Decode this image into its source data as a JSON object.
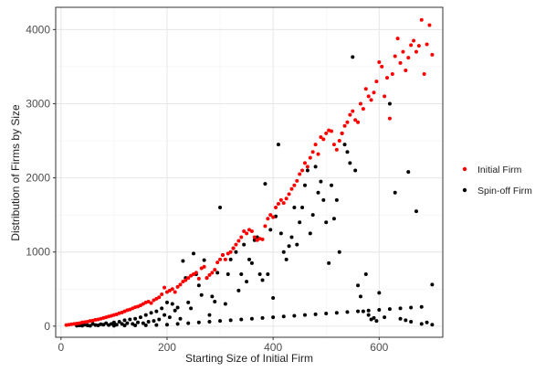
{
  "chart_data": {
    "type": "scatter",
    "title": "",
    "xlabel": "Starting Size of Initial Firm",
    "ylabel": "Distribution of Firms by Size",
    "xlim": [
      -10,
      720
    ],
    "ylim": [
      -150,
      4300
    ],
    "xticks": [
      0,
      200,
      400,
      600
    ],
    "yticks": [
      0,
      1000,
      2000,
      3000,
      4000
    ],
    "grid": true,
    "legend_position": "right",
    "series": [
      {
        "name": "Initial Firm",
        "color": "#ff0000",
        "points": [
          [
            10,
            15
          ],
          [
            15,
            20
          ],
          [
            20,
            25
          ],
          [
            25,
            30
          ],
          [
            30,
            35
          ],
          [
            35,
            40
          ],
          [
            40,
            50
          ],
          [
            45,
            55
          ],
          [
            50,
            60
          ],
          [
            55,
            70
          ],
          [
            60,
            75
          ],
          [
            65,
            85
          ],
          [
            70,
            90
          ],
          [
            75,
            100
          ],
          [
            80,
            110
          ],
          [
            85,
            120
          ],
          [
            90,
            130
          ],
          [
            95,
            140
          ],
          [
            100,
            150
          ],
          [
            105,
            160
          ],
          [
            110,
            175
          ],
          [
            115,
            185
          ],
          [
            120,
            200
          ],
          [
            125,
            215
          ],
          [
            130,
            225
          ],
          [
            135,
            240
          ],
          [
            140,
            255
          ],
          [
            145,
            265
          ],
          [
            150,
            280
          ],
          [
            155,
            300
          ],
          [
            160,
            320
          ],
          [
            165,
            330
          ],
          [
            170,
            310
          ],
          [
            175,
            350
          ],
          [
            180,
            370
          ],
          [
            185,
            390
          ],
          [
            190,
            430
          ],
          [
            195,
            520
          ],
          [
            200,
            460
          ],
          [
            205,
            480
          ],
          [
            210,
            500
          ],
          [
            215,
            460
          ],
          [
            220,
            530
          ],
          [
            225,
            560
          ],
          [
            230,
            600
          ],
          [
            235,
            620
          ],
          [
            240,
            650
          ],
          [
            245,
            680
          ],
          [
            250,
            700
          ],
          [
            255,
            720
          ],
          [
            260,
            640
          ],
          [
            265,
            780
          ],
          [
            270,
            800
          ],
          [
            275,
            650
          ],
          [
            280,
            690
          ],
          [
            285,
            720
          ],
          [
            290,
            760
          ],
          [
            295,
            860
          ],
          [
            300,
            900
          ],
          [
            305,
            960
          ],
          [
            310,
            900
          ],
          [
            315,
            980
          ],
          [
            320,
            1000
          ],
          [
            325,
            1050
          ],
          [
            330,
            1100
          ],
          [
            335,
            1150
          ],
          [
            340,
            1200
          ],
          [
            345,
            1280
          ],
          [
            350,
            1250
          ],
          [
            355,
            1300
          ],
          [
            360,
            1280
          ],
          [
            365,
            1200
          ],
          [
            370,
            1160
          ],
          [
            375,
            1180
          ],
          [
            380,
            1170
          ],
          [
            385,
            1350
          ],
          [
            390,
            1450
          ],
          [
            395,
            1500
          ],
          [
            400,
            1470
          ],
          [
            405,
            1600
          ],
          [
            410,
            1650
          ],
          [
            415,
            1700
          ],
          [
            420,
            1660
          ],
          [
            425,
            1720
          ],
          [
            430,
            1780
          ],
          [
            435,
            1850
          ],
          [
            440,
            1900
          ],
          [
            445,
            1960
          ],
          [
            450,
            2050
          ],
          [
            455,
            2100
          ],
          [
            460,
            2200
          ],
          [
            465,
            2150
          ],
          [
            470,
            2270
          ],
          [
            475,
            2350
          ],
          [
            480,
            2450
          ],
          [
            485,
            2320
          ],
          [
            490,
            2550
          ],
          [
            495,
            2520
          ],
          [
            500,
            2600
          ],
          [
            505,
            2640
          ],
          [
            510,
            2630
          ],
          [
            515,
            2450
          ],
          [
            520,
            2380
          ],
          [
            525,
            2500
          ],
          [
            530,
            2600
          ],
          [
            535,
            2700
          ],
          [
            540,
            2750
          ],
          [
            545,
            2850
          ],
          [
            550,
            2900
          ],
          [
            555,
            2780
          ],
          [
            560,
            2750
          ],
          [
            565,
            3000
          ],
          [
            570,
            2930
          ],
          [
            575,
            3200
          ],
          [
            580,
            3100
          ],
          [
            585,
            3050
          ],
          [
            590,
            3150
          ],
          [
            595,
            3300
          ],
          [
            600,
            3560
          ],
          [
            605,
            3500
          ],
          [
            610,
            3100
          ],
          [
            615,
            3350
          ],
          [
            620,
            2800
          ],
          [
            625,
            3400
          ],
          [
            630,
            3640
          ],
          [
            635,
            3880
          ],
          [
            640,
            3550
          ],
          [
            645,
            3700
          ],
          [
            650,
            3450
          ],
          [
            655,
            3620
          ],
          [
            660,
            3790
          ],
          [
            665,
            3850
          ],
          [
            670,
            3700
          ],
          [
            675,
            3780
          ],
          [
            680,
            4130
          ],
          [
            685,
            3400
          ],
          [
            690,
            3800
          ],
          [
            695,
            4060
          ],
          [
            700,
            3660
          ]
        ]
      },
      {
        "name": "Spin-off Firm",
        "color": "#000000",
        "points": [
          [
            30,
            5
          ],
          [
            35,
            10
          ],
          [
            40,
            5
          ],
          [
            45,
            20
          ],
          [
            50,
            10
          ],
          [
            55,
            5
          ],
          [
            60,
            30
          ],
          [
            65,
            15
          ],
          [
            70,
            10
          ],
          [
            75,
            25
          ],
          [
            80,
            20
          ],
          [
            85,
            40
          ],
          [
            90,
            15
          ],
          [
            95,
            30
          ],
          [
            100,
            50
          ],
          [
            105,
            20
          ],
          [
            110,
            60
          ],
          [
            115,
            30
          ],
          [
            120,
            80
          ],
          [
            125,
            40
          ],
          [
            130,
            90
          ],
          [
            135,
            30
          ],
          [
            140,
            100
          ],
          [
            145,
            50
          ],
          [
            150,
            120
          ],
          [
            155,
            40
          ],
          [
            160,
            150
          ],
          [
            165,
            60
          ],
          [
            170,
            180
          ],
          [
            175,
            70
          ],
          [
            180,
            200
          ],
          [
            185,
            90
          ],
          [
            190,
            240
          ],
          [
            195,
            150
          ],
          [
            200,
            320
          ],
          [
            205,
            120
          ],
          [
            210,
            300
          ],
          [
            215,
            210
          ],
          [
            220,
            250
          ],
          [
            225,
            100
          ],
          [
            230,
            880
          ],
          [
            235,
            650
          ],
          [
            240,
            320
          ],
          [
            245,
            240
          ],
          [
            250,
            980
          ],
          [
            255,
            700
          ],
          [
            260,
            550
          ],
          [
            265,
            420
          ],
          [
            270,
            890
          ],
          [
            275,
            650
          ],
          [
            280,
            150
          ],
          [
            285,
            400
          ],
          [
            290,
            330
          ],
          [
            295,
            720
          ],
          [
            300,
            1600
          ],
          [
            305,
            960
          ],
          [
            310,
            300
          ],
          [
            315,
            700
          ],
          [
            320,
            900
          ],
          [
            325,
            1050
          ],
          [
            330,
            1000
          ],
          [
            335,
            480
          ],
          [
            340,
            700
          ],
          [
            345,
            1100
          ],
          [
            350,
            600
          ],
          [
            355,
            900
          ],
          [
            360,
            850
          ],
          [
            365,
            1160
          ],
          [
            370,
            1200
          ],
          [
            375,
            700
          ],
          [
            380,
            620
          ],
          [
            385,
            1920
          ],
          [
            390,
            700
          ],
          [
            395,
            1300
          ],
          [
            400,
            380
          ],
          [
            405,
            1480
          ],
          [
            410,
            2450
          ],
          [
            415,
            1250
          ],
          [
            420,
            1000
          ],
          [
            425,
            900
          ],
          [
            430,
            1080
          ],
          [
            435,
            1200
          ],
          [
            440,
            1600
          ],
          [
            445,
            1100
          ],
          [
            450,
            1400
          ],
          [
            455,
            1600
          ],
          [
            460,
            1900
          ],
          [
            465,
            2100
          ],
          [
            470,
            1250
          ],
          [
            475,
            1500
          ],
          [
            480,
            2150
          ],
          [
            485,
            1800
          ],
          [
            490,
            1950
          ],
          [
            495,
            1700
          ],
          [
            500,
            1400
          ],
          [
            505,
            850
          ],
          [
            510,
            1900
          ],
          [
            515,
            1450
          ],
          [
            520,
            1700
          ],
          [
            525,
            1000
          ],
          [
            530,
            2600
          ],
          [
            535,
            2450
          ],
          [
            540,
            2350
          ],
          [
            545,
            2200
          ],
          [
            550,
            3630
          ],
          [
            555,
            2100
          ],
          [
            560,
            550
          ],
          [
            565,
            400
          ],
          [
            570,
            200
          ],
          [
            575,
            700
          ],
          [
            580,
            150
          ],
          [
            585,
            90
          ],
          [
            590,
            110
          ],
          [
            595,
            70
          ],
          [
            600,
            450
          ],
          [
            610,
            120
          ],
          [
            620,
            3000
          ],
          [
            630,
            1800
          ],
          [
            640,
            100
          ],
          [
            650,
            80
          ],
          [
            655,
            2080
          ],
          [
            660,
            60
          ],
          [
            670,
            1550
          ],
          [
            680,
            30
          ],
          [
            690,
            50
          ],
          [
            700,
            560
          ],
          [
            700,
            20
          ],
          [
            100,
            5
          ],
          [
            120,
            8
          ],
          [
            140,
            10
          ],
          [
            160,
            12
          ],
          [
            180,
            15
          ],
          [
            200,
            20
          ],
          [
            220,
            30
          ],
          [
            240,
            40
          ],
          [
            260,
            50
          ],
          [
            280,
            60
          ],
          [
            300,
            70
          ],
          [
            320,
            80
          ],
          [
            340,
            90
          ],
          [
            360,
            100
          ],
          [
            380,
            110
          ],
          [
            400,
            120
          ],
          [
            420,
            130
          ],
          [
            440,
            140
          ],
          [
            460,
            150
          ],
          [
            480,
            160
          ],
          [
            500,
            170
          ],
          [
            520,
            180
          ],
          [
            540,
            190
          ],
          [
            560,
            200
          ],
          [
            580,
            210
          ],
          [
            600,
            220
          ],
          [
            620,
            230
          ],
          [
            640,
            240
          ],
          [
            660,
            250
          ],
          [
            680,
            260
          ]
        ]
      }
    ]
  }
}
